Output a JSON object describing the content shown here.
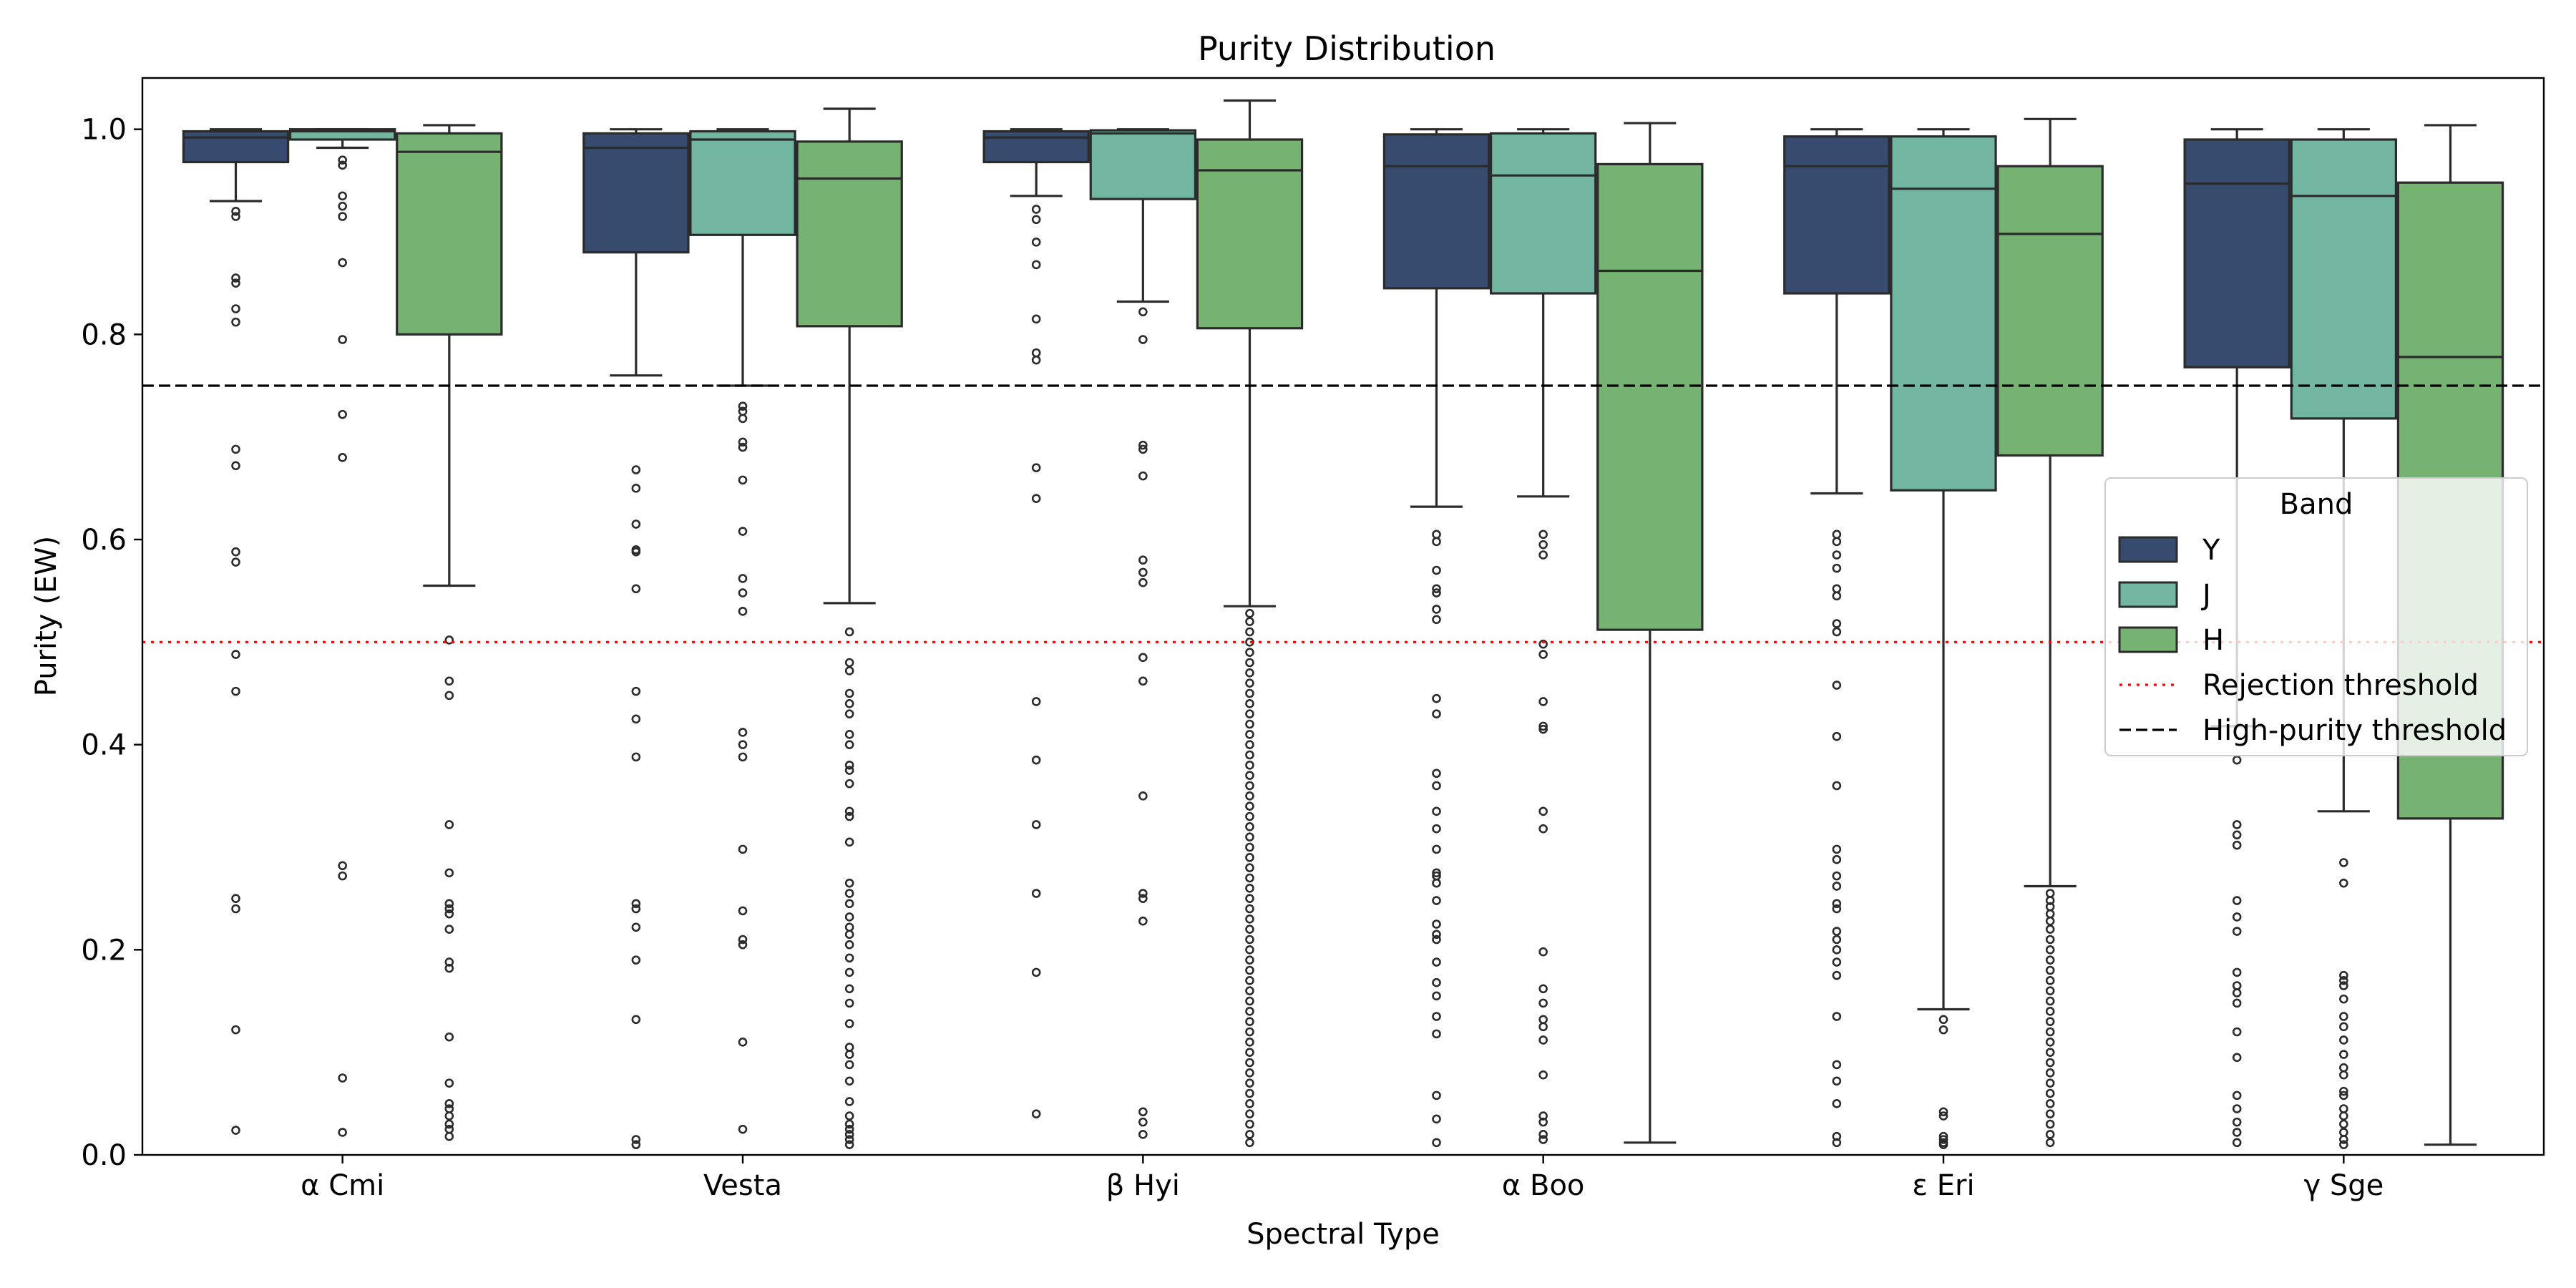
{
  "chart_data": {
    "type": "box",
    "title": "Purity Distribution",
    "xlabel": "Spectral Type",
    "ylabel": "Purity (EW)",
    "ylim": [
      0.0,
      1.05
    ],
    "yticks": [
      "0.0",
      "0.2",
      "0.4",
      "0.6",
      "0.8",
      "1.0"
    ],
    "categories": [
      "α Cmi",
      "Vesta",
      "β Hyi",
      "α Boo",
      "ε Eri",
      "γ Sge"
    ],
    "legend": {
      "title": "Band",
      "position": "right"
    },
    "series": [
      {
        "name": "Y",
        "color": "#364b6e",
        "boxes": [
          {
            "whislo": 0.93,
            "q1": 0.968,
            "med": 0.992,
            "q3": 0.998,
            "whishi": 1.0,
            "fliers": [
              0.92,
              0.915,
              0.855,
              0.85,
              0.825,
              0.812,
              0.688,
              0.672,
              0.588,
              0.578,
              0.488,
              0.452,
              0.25,
              0.24,
              0.122,
              0.024
            ]
          },
          {
            "whislo": 0.76,
            "q1": 0.88,
            "med": 0.982,
            "q3": 0.996,
            "whishi": 1.0,
            "fliers": [
              0.668,
              0.65,
              0.615,
              0.59,
              0.588,
              0.552,
              0.452,
              0.425,
              0.388,
              0.245,
              0.24,
              0.222,
              0.19,
              0.132,
              0.015,
              0.01
            ]
          },
          {
            "whislo": 0.935,
            "q1": 0.968,
            "med": 0.992,
            "q3": 0.998,
            "whishi": 1.0,
            "fliers": [
              0.922,
              0.912,
              0.89,
              0.868,
              0.815,
              0.782,
              0.775,
              0.67,
              0.64,
              0.442,
              0.385,
              0.322,
              0.255,
              0.178,
              0.04
            ]
          },
          {
            "whislo": 0.632,
            "q1": 0.845,
            "med": 0.964,
            "q3": 0.995,
            "whishi": 1.0,
            "fliers": [
              0.605,
              0.598,
              0.57,
              0.552,
              0.548,
              0.532,
              0.522,
              0.445,
              0.43,
              0.372,
              0.36,
              0.335,
              0.318,
              0.298,
              0.275,
              0.272,
              0.265,
              0.248,
              0.225,
              0.215,
              0.21,
              0.188,
              0.168,
              0.155,
              0.135,
              0.118,
              0.058,
              0.035,
              0.012
            ]
          },
          {
            "whislo": 0.645,
            "q1": 0.84,
            "med": 0.964,
            "q3": 0.993,
            "whishi": 1.0,
            "fliers": [
              0.605,
              0.598,
              0.585,
              0.572,
              0.552,
              0.545,
              0.518,
              0.51,
              0.458,
              0.408,
              0.36,
              0.298,
              0.288,
              0.272,
              0.262,
              0.245,
              0.24,
              0.218,
              0.21,
              0.2,
              0.188,
              0.175,
              0.135,
              0.088,
              0.072,
              0.05,
              0.018,
              0.012
            ]
          },
          {
            "whislo": 0.418,
            "q1": 0.768,
            "med": 0.947,
            "q3": 0.99,
            "whishi": 1.0,
            "fliers": [
              0.385,
              0.322,
              0.312,
              0.302,
              0.248,
              0.232,
              0.218,
              0.178,
              0.165,
              0.158,
              0.148,
              0.12,
              0.095,
              0.058,
              0.045,
              0.032,
              0.022,
              0.012
            ]
          }
        ]
      },
      {
        "name": "J",
        "color": "#72b6a1",
        "boxes": [
          {
            "whislo": 0.982,
            "q1": 0.99,
            "med": 0.998,
            "q3": 1.0,
            "whishi": 1.0,
            "fliers": [
              0.97,
              0.965,
              0.935,
              0.925,
              0.915,
              0.87,
              0.795,
              0.722,
              0.68,
              0.282,
              0.272,
              0.075,
              0.022
            ]
          },
          {
            "whislo": 0.75,
            "q1": 0.897,
            "med": 0.99,
            "q3": 0.998,
            "whishi": 1.0,
            "fliers": [
              0.73,
              0.725,
              0.718,
              0.695,
              0.69,
              0.658,
              0.608,
              0.562,
              0.548,
              0.53,
              0.412,
              0.4,
              0.388,
              0.298,
              0.238,
              0.21,
              0.205,
              0.11,
              0.025
            ]
          },
          {
            "whislo": 0.832,
            "q1": 0.932,
            "med": 0.996,
            "q3": 0.999,
            "whishi": 1.0,
            "fliers": [
              0.822,
              0.795,
              0.692,
              0.688,
              0.662,
              0.58,
              0.568,
              0.558,
              0.485,
              0.462,
              0.35,
              0.255,
              0.25,
              0.228,
              0.042,
              0.032,
              0.02
            ]
          },
          {
            "whislo": 0.642,
            "q1": 0.84,
            "med": 0.955,
            "q3": 0.996,
            "whishi": 1.0,
            "fliers": [
              0.605,
              0.595,
              0.585,
              0.498,
              0.488,
              0.442,
              0.418,
              0.415,
              0.335,
              0.318,
              0.198,
              0.162,
              0.148,
              0.132,
              0.125,
              0.112,
              0.078,
              0.038,
              0.032,
              0.02,
              0.015
            ]
          },
          {
            "whislo": 0.142,
            "q1": 0.648,
            "med": 0.942,
            "q3": 0.993,
            "whishi": 1.0,
            "fliers": [
              0.132,
              0.122,
              0.042,
              0.038,
              0.018,
              0.015,
              0.012,
              0.01
            ]
          },
          {
            "whislo": 0.335,
            "q1": 0.718,
            "med": 0.935,
            "q3": 0.99,
            "whishi": 1.0,
            "fliers": [
              0.285,
              0.265,
              0.175,
              0.17,
              0.165,
              0.152,
              0.135,
              0.125,
              0.112,
              0.098,
              0.085,
              0.078,
              0.062,
              0.058,
              0.045,
              0.038,
              0.03,
              0.022,
              0.015,
              0.01
            ]
          }
        ]
      },
      {
        "name": "H",
        "color": "#76b272",
        "boxes": [
          {
            "whislo": 0.555,
            "q1": 0.8,
            "med": 0.978,
            "q3": 0.996,
            "whishi": 1.004,
            "fliers": [
              0.502,
              0.462,
              0.448,
              0.322,
              0.275,
              0.245,
              0.24,
              0.235,
              0.22,
              0.188,
              0.182,
              0.115,
              0.07,
              0.05,
              0.045,
              0.038,
              0.03,
              0.025,
              0.018
            ]
          },
          {
            "whislo": 0.538,
            "q1": 0.808,
            "med": 0.952,
            "q3": 0.988,
            "whishi": 1.02,
            "fliers": [
              0.51,
              0.48,
              0.472,
              0.45,
              0.44,
              0.43,
              0.41,
              0.4,
              0.38,
              0.375,
              0.362,
              0.335,
              0.33,
              0.305,
              0.265,
              0.255,
              0.245,
              0.232,
              0.222,
              0.215,
              0.205,
              0.192,
              0.178,
              0.162,
              0.148,
              0.128,
              0.105,
              0.098,
              0.088,
              0.072,
              0.052,
              0.038,
              0.03,
              0.025,
              0.02,
              0.015,
              0.01
            ]
          },
          {
            "whislo": 0.535,
            "q1": 0.806,
            "med": 0.96,
            "q3": 0.99,
            "whishi": 1.028,
            "fliers": [
              0.528,
              0.52,
              0.51,
              0.5,
              0.49,
              0.48,
              0.47,
              0.46,
              0.45,
              0.44,
              0.43,
              0.42,
              0.41,
              0.4,
              0.39,
              0.38,
              0.37,
              0.36,
              0.35,
              0.34,
              0.33,
              0.32,
              0.31,
              0.3,
              0.29,
              0.28,
              0.27,
              0.26,
              0.25,
              0.24,
              0.23,
              0.22,
              0.21,
              0.2,
              0.19,
              0.18,
              0.17,
              0.16,
              0.15,
              0.14,
              0.13,
              0.12,
              0.11,
              0.1,
              0.09,
              0.08,
              0.07,
              0.06,
              0.05,
              0.04,
              0.03,
              0.02,
              0.012
            ]
          },
          {
            "whislo": 0.012,
            "q1": 0.512,
            "med": 0.862,
            "q3": 0.966,
            "whishi": 1.006,
            "fliers": []
          },
          {
            "whislo": 0.262,
            "q1": 0.682,
            "med": 0.898,
            "q3": 0.964,
            "whishi": 1.01,
            "fliers": [
              0.255,
              0.248,
              0.242,
              0.235,
              0.228,
              0.22,
              0.21,
              0.2,
              0.19,
              0.18,
              0.17,
              0.16,
              0.15,
              0.14,
              0.13,
              0.12,
              0.11,
              0.1,
              0.09,
              0.08,
              0.07,
              0.06,
              0.05,
              0.04,
              0.03,
              0.02,
              0.012
            ]
          },
          {
            "whislo": 0.01,
            "q1": 0.328,
            "med": 0.778,
            "q3": 0.948,
            "whishi": 1.004,
            "fliers": []
          }
        ]
      }
    ],
    "reference_lines": [
      {
        "name": "Rejection threshold",
        "y": 0.5,
        "color": "#ff0000",
        "style": "dotted"
      },
      {
        "name": "High-purity threshold",
        "y": 0.75,
        "color": "#000000",
        "style": "dashed"
      }
    ]
  }
}
